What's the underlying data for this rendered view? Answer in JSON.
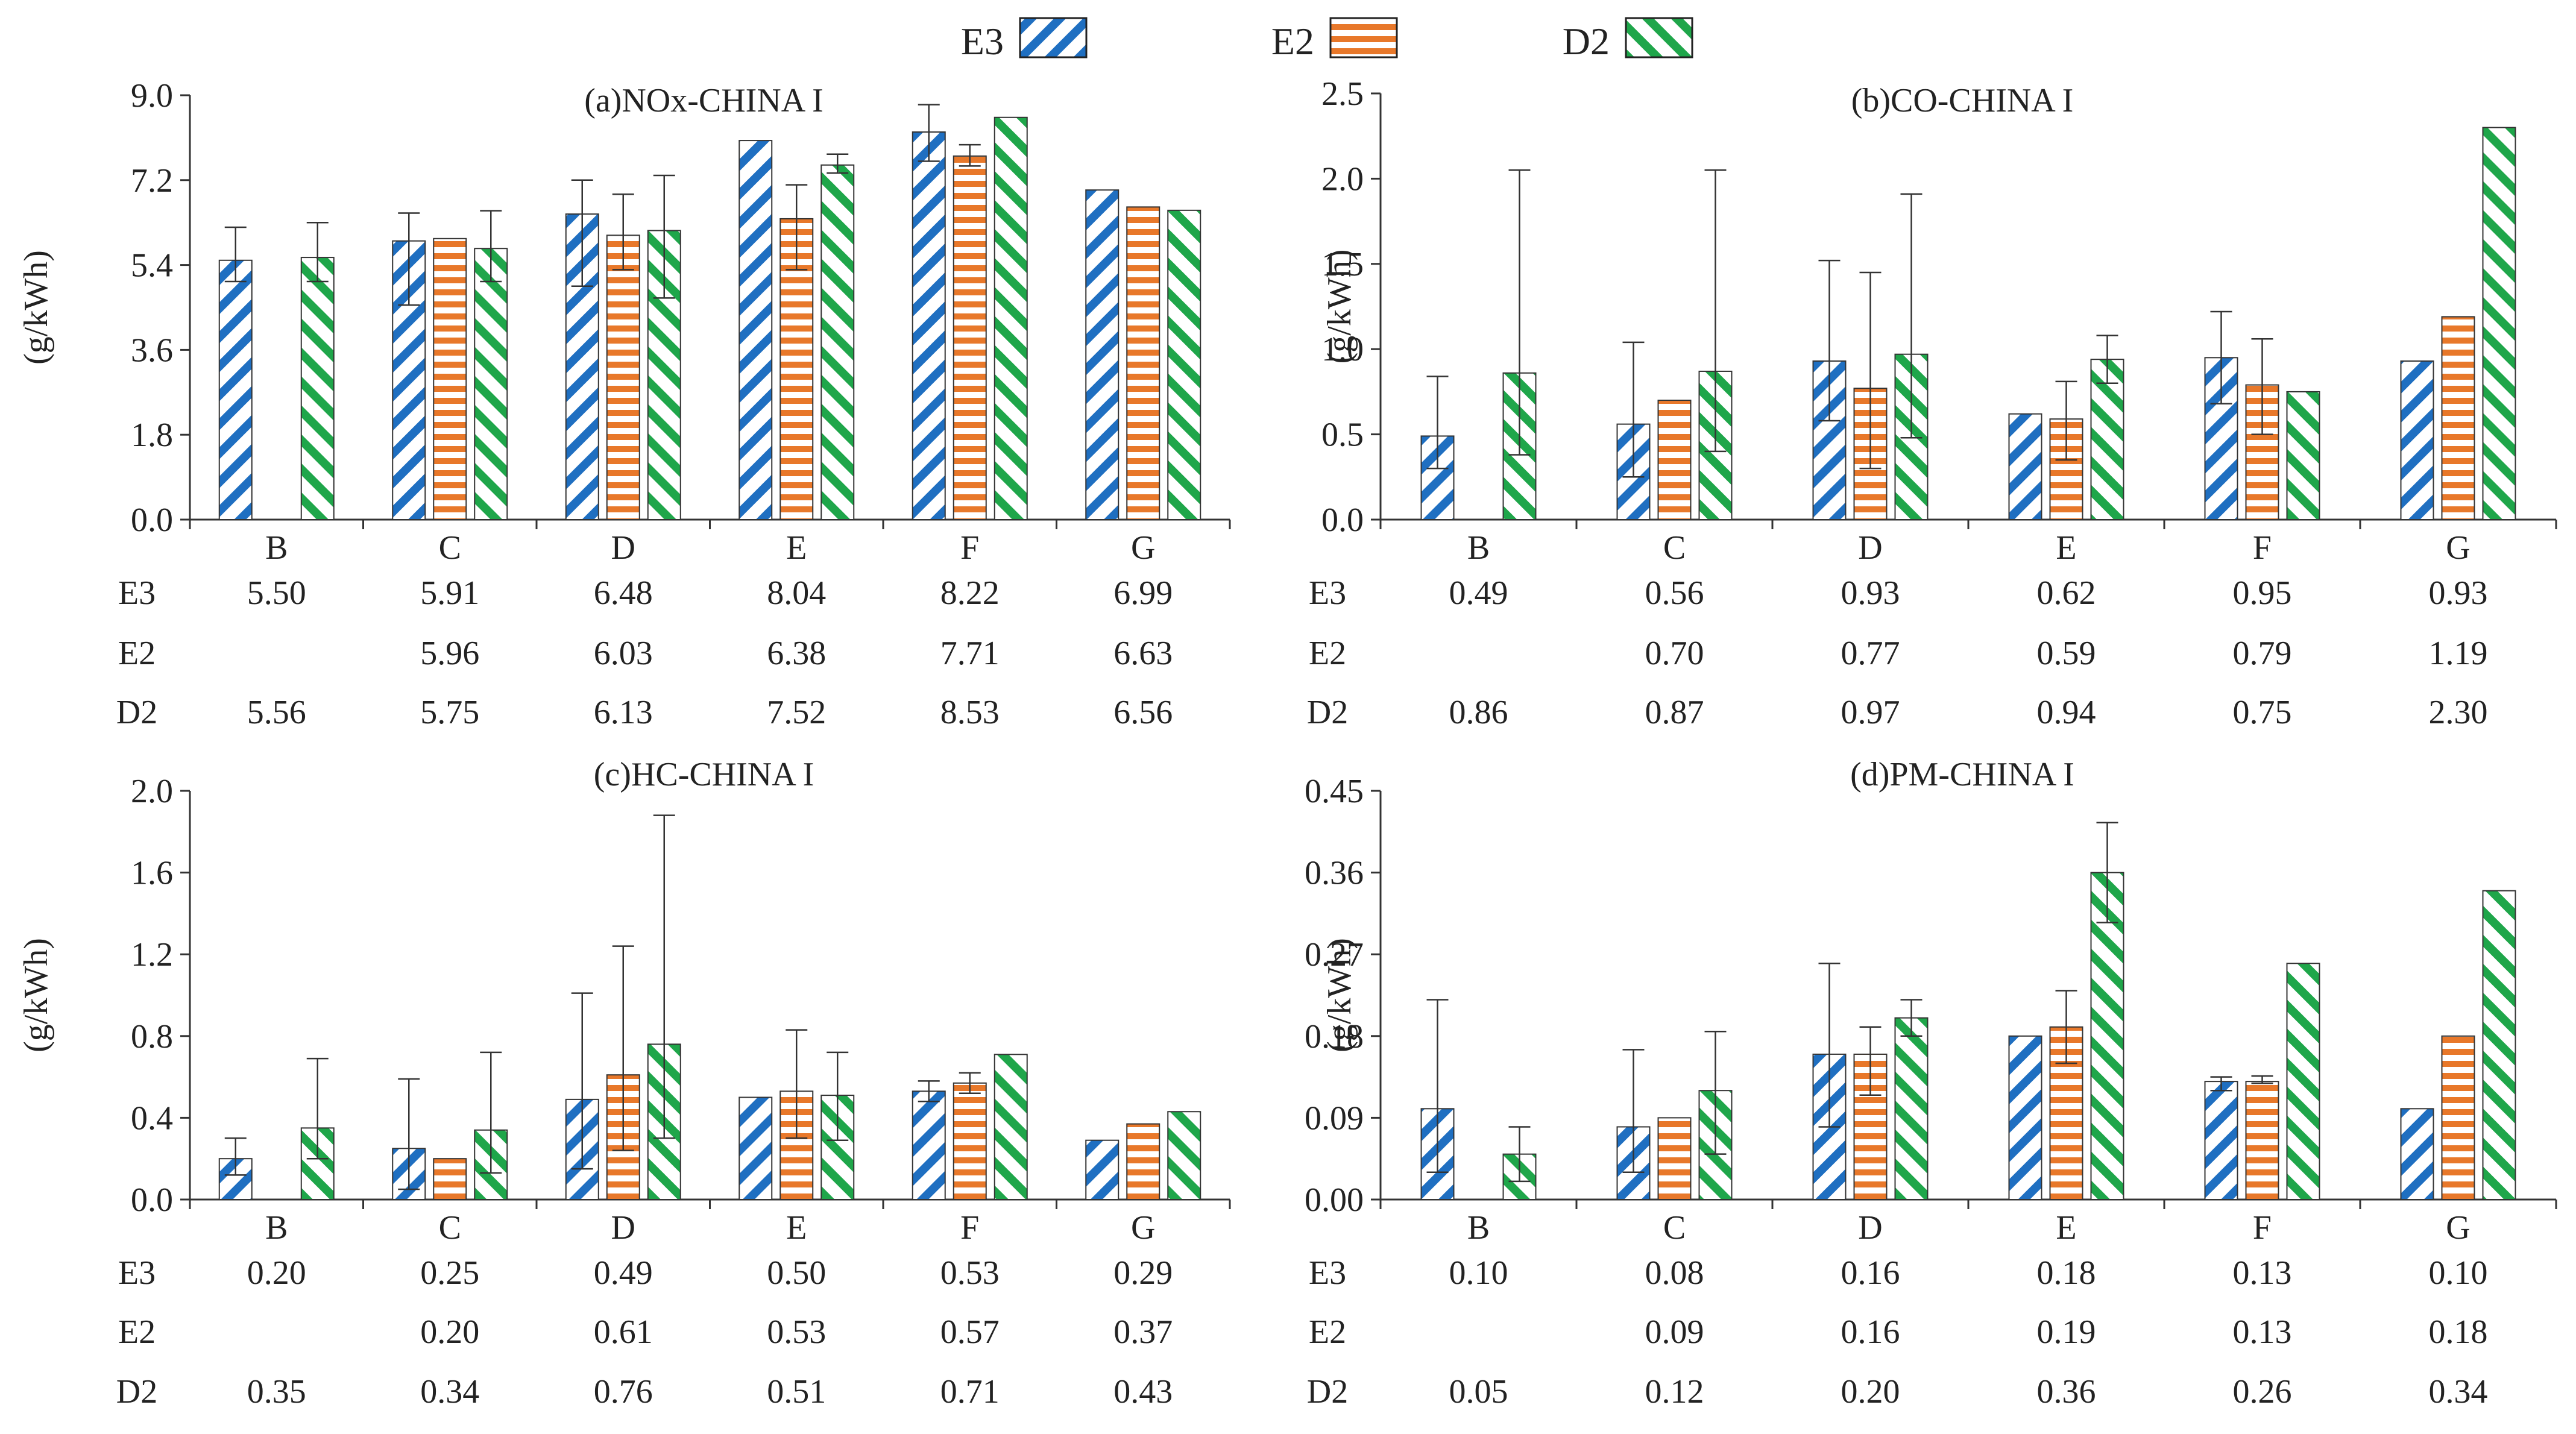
{
  "legend": [
    {
      "name": "E3",
      "color": "#1f6fc1",
      "pattern": "diag-back"
    },
    {
      "name": "E2",
      "color": "#e8782a",
      "pattern": "horizontal"
    },
    {
      "name": "D2",
      "color": "#1fa64a",
      "pattern": "diag-fwd"
    }
  ],
  "chart_data": [
    {
      "type": "bar",
      "title": "(a)NOx-CHINA I",
      "ylabel": "(g/kWh)",
      "ylim": [
        0,
        9.0
      ],
      "yticks": [
        0.0,
        1.8,
        3.6,
        5.4,
        7.2,
        9.0
      ],
      "ytick_labels": [
        "0.0",
        "1.8",
        "3.6",
        "5.4",
        "7.2",
        "9.0"
      ],
      "categories": [
        "B",
        "C",
        "D",
        "E",
        "F",
        "G"
      ],
      "series": [
        {
          "name": "E3",
          "values": [
            5.5,
            5.91,
            6.48,
            8.04,
            8.22,
            6.99
          ],
          "labels": [
            "5.50",
            "5.91",
            "6.48",
            "8.04",
            "8.22",
            "6.99"
          ],
          "err_low": [
            5.05,
            4.55,
            4.95,
            null,
            7.6,
            null
          ],
          "err_high": [
            6.2,
            6.5,
            7.2,
            null,
            8.8,
            null
          ]
        },
        {
          "name": "E2",
          "values": [
            null,
            5.96,
            6.03,
            6.38,
            7.71,
            6.63
          ],
          "labels": [
            "",
            "5.96",
            "6.03",
            "6.38",
            "7.71",
            "6.63"
          ],
          "err_low": [
            null,
            null,
            5.3,
            5.3,
            7.5,
            null
          ],
          "err_high": [
            null,
            null,
            6.9,
            7.1,
            7.95,
            null
          ]
        },
        {
          "name": "D2",
          "values": [
            5.56,
            5.75,
            6.13,
            7.52,
            8.53,
            6.56
          ],
          "labels": [
            "5.56",
            "5.75",
            "6.13",
            "7.52",
            "8.53",
            "6.56"
          ],
          "err_low": [
            5.05,
            5.05,
            4.7,
            7.35,
            null,
            null
          ],
          "err_high": [
            6.3,
            6.55,
            7.3,
            7.75,
            null,
            null
          ]
        }
      ]
    },
    {
      "type": "bar",
      "title": "(b)CO-CHINA I",
      "ylabel": "(g/kWh)",
      "ylim": [
        0,
        2.5
      ],
      "yticks": [
        0.0,
        0.5,
        1.0,
        1.5,
        2.0,
        2.5
      ],
      "ytick_labels": [
        "0.0",
        "0.5",
        "1.0",
        "1.5",
        "2.0",
        "2.5"
      ],
      "categories": [
        "B",
        "C",
        "D",
        "E",
        "F",
        "G"
      ],
      "series": [
        {
          "name": "E3",
          "values": [
            0.49,
            0.56,
            0.93,
            0.62,
            0.95,
            0.93
          ],
          "labels": [
            "0.49",
            "0.56",
            "0.93",
            "0.62",
            "0.95",
            "0.93"
          ],
          "err_low": [
            0.3,
            0.25,
            0.58,
            null,
            0.68,
            null
          ],
          "err_high": [
            0.84,
            1.04,
            1.52,
            null,
            1.22,
            null
          ]
        },
        {
          "name": "E2",
          "values": [
            null,
            0.7,
            0.77,
            0.59,
            0.79,
            1.19
          ],
          "labels": [
            "",
            "0.70",
            "0.77",
            "0.59",
            "0.79",
            "1.19"
          ],
          "err_low": [
            null,
            null,
            0.3,
            0.35,
            0.5,
            null
          ],
          "err_high": [
            null,
            null,
            1.45,
            0.81,
            1.06,
            null
          ]
        },
        {
          "name": "D2",
          "values": [
            0.86,
            0.87,
            0.97,
            0.94,
            0.75,
            2.3
          ],
          "labels": [
            "0.86",
            "0.87",
            "0.97",
            "0.94",
            "0.75",
            "2.30"
          ],
          "err_low": [
            0.38,
            0.4,
            0.48,
            0.8,
            null,
            null
          ],
          "err_high": [
            2.05,
            2.05,
            1.91,
            1.08,
            null,
            null
          ]
        }
      ]
    },
    {
      "type": "bar",
      "title": "(c)HC-CHINA I",
      "ylabel": "(g/kWh)",
      "ylim": [
        0,
        2.0
      ],
      "yticks": [
        0.0,
        0.4,
        0.8,
        1.2,
        1.6,
        2.0
      ],
      "ytick_labels": [
        "0.0",
        "0.4",
        "0.8",
        "1.2",
        "1.6",
        "2.0"
      ],
      "categories": [
        "B",
        "C",
        "D",
        "E",
        "F",
        "G"
      ],
      "series": [
        {
          "name": "E3",
          "values": [
            0.2,
            0.25,
            0.49,
            0.5,
            0.53,
            0.29
          ],
          "labels": [
            "0.20",
            "0.25",
            "0.49",
            "0.50",
            "0.53",
            "0.29"
          ],
          "err_low": [
            0.12,
            0.05,
            0.15,
            null,
            0.48,
            null
          ],
          "err_high": [
            0.3,
            0.59,
            1.01,
            null,
            0.58,
            null
          ]
        },
        {
          "name": "E2",
          "values": [
            null,
            0.2,
            0.61,
            0.53,
            0.57,
            0.37
          ],
          "labels": [
            "",
            "0.20",
            "0.61",
            "0.53",
            "0.57",
            "0.37"
          ],
          "err_low": [
            null,
            null,
            0.24,
            0.3,
            0.52,
            null
          ],
          "err_high": [
            null,
            null,
            1.24,
            0.83,
            0.62,
            null
          ]
        },
        {
          "name": "D2",
          "values": [
            0.35,
            0.34,
            0.76,
            0.51,
            0.71,
            0.43
          ],
          "labels": [
            "0.35",
            "0.34",
            "0.76",
            "0.51",
            "0.71",
            "0.43"
          ],
          "err_low": [
            0.2,
            0.13,
            0.3,
            0.29,
            null,
            null
          ],
          "err_high": [
            0.69,
            0.72,
            1.88,
            0.72,
            null,
            null
          ]
        }
      ]
    },
    {
      "type": "bar",
      "title": "(d)PM-CHINA I",
      "ylabel": "(g/kWh)",
      "ylim": [
        0,
        0.45
      ],
      "yticks": [
        0.0,
        0.09,
        0.18,
        0.27,
        0.36,
        0.45
      ],
      "ytick_labels": [
        "0.00",
        "0.09",
        "0.18",
        "0.27",
        "0.36",
        "0.45"
      ],
      "categories": [
        "B",
        "C",
        "D",
        "E",
        "F",
        "G"
      ],
      "series": [
        {
          "name": "E3",
          "values": [
            0.1,
            0.08,
            0.16,
            0.18,
            0.13,
            0.1
          ],
          "labels": [
            "0.10",
            "0.08",
            "0.16",
            "0.18",
            "0.13",
            "0.10"
          ],
          "err_low": [
            0.03,
            0.03,
            0.08,
            null,
            0.12,
            null
          ],
          "err_high": [
            0.22,
            0.165,
            0.26,
            null,
            0.135,
            null
          ]
        },
        {
          "name": "E2",
          "values": [
            null,
            0.09,
            0.16,
            0.19,
            0.13,
            0.18
          ],
          "labels": [
            "",
            "0.09",
            "0.16",
            "0.19",
            "0.13",
            "0.18"
          ],
          "err_low": [
            null,
            null,
            0.115,
            0.15,
            0.128,
            null
          ],
          "err_high": [
            null,
            null,
            0.19,
            0.23,
            0.136,
            null
          ]
        },
        {
          "name": "D2",
          "values": [
            0.05,
            0.12,
            0.2,
            0.36,
            0.26,
            0.34
          ],
          "labels": [
            "0.05",
            "0.12",
            "0.20",
            "0.36",
            "0.26",
            "0.34"
          ],
          "err_low": [
            0.02,
            0.05,
            0.18,
            0.305,
            null,
            null
          ],
          "err_high": [
            0.08,
            0.185,
            0.22,
            0.415,
            null,
            null
          ]
        }
      ]
    }
  ]
}
